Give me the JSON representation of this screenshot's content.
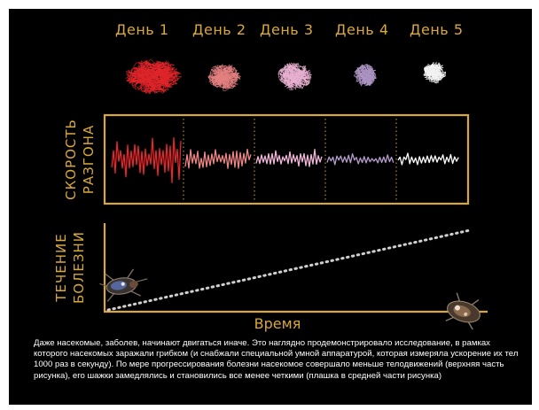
{
  "days": [
    "День 1",
    "День 2",
    "День 3",
    "День 4",
    "День 5"
  ],
  "day_colors": [
    "#e8262b",
    "#ef8686",
    "#f2b8da",
    "#b49ccc",
    "#ffffff"
  ],
  "top_axis_label": [
    "СКОРОСТЬ",
    "РАЗГОНА"
  ],
  "bottom_axis_label": [
    "ТЕЧЕНИЕ",
    "БОЛЕЗНИ"
  ],
  "x_axis_label": "Время",
  "caption": "Даже насекомые, заболев, начинают двигаться иначе. Это наглядно продемонстрировало исследование, в рамках которого насекомых заражали грибком (и снабжали специальной умной аппаратурой, которая измеряла ускорение их тел 1000 раз в секунду). По мере прогрессирования болезни насекомое соверша­ло меньше телодвижений (верхняя часть рисунка), его шажки замедлялись и становились все менее чет­кими (плашка в средней части рисунка)",
  "colors": {
    "accent": "#d9a83a",
    "frame": "#d9a83a",
    "dots": "#cfcfcf"
  }
}
